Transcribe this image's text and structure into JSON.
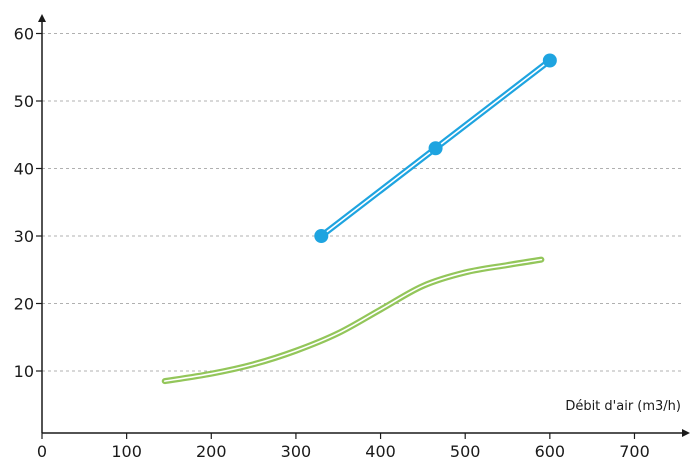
{
  "chart_data": {
    "type": "line",
    "xlabel": "Débit d'air (m3/h)",
    "ylabel": "",
    "xlim": [
      0,
      700
    ],
    "ylim": [
      5,
      62
    ],
    "x_ticks": [
      "0",
      "100",
      "200",
      "300",
      "400",
      "500",
      "600",
      "700"
    ],
    "y_ticks": [
      "10",
      "20",
      "30",
      "40",
      "50",
      "60"
    ],
    "grid": "horizontal dashed",
    "legend": "none",
    "colors": {
      "axis": "#1a1a1a",
      "grid": "#b0b0b0"
    },
    "series": [
      {
        "color": "#1ea4e0",
        "markers": true,
        "points": [
          {
            "x": 330,
            "y": 30
          },
          {
            "x": 465,
            "y": 43
          },
          {
            "x": 600,
            "y": 56
          }
        ]
      },
      {
        "color": "#93c65a",
        "markers": false,
        "points": [
          {
            "x": 145,
            "y": 8.5
          },
          {
            "x": 200,
            "y": 9.6
          },
          {
            "x": 250,
            "y": 11
          },
          {
            "x": 300,
            "y": 13
          },
          {
            "x": 350,
            "y": 15.6
          },
          {
            "x": 400,
            "y": 19.1
          },
          {
            "x": 450,
            "y": 22.6
          },
          {
            "x": 500,
            "y": 24.6
          },
          {
            "x": 550,
            "y": 25.7
          },
          {
            "x": 590,
            "y": 26.5
          }
        ]
      }
    ]
  }
}
